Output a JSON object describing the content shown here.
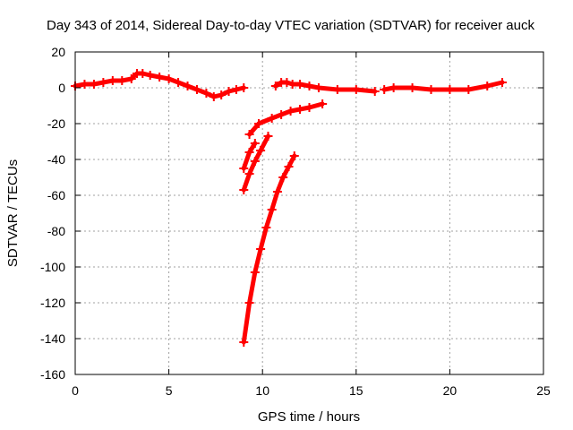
{
  "chart_data": {
    "type": "line",
    "title": "Day 343 of 2014, Sidereal Day-to-day VTEC variation (SDTVAR) for receiver auck",
    "xlabel": "GPS time / hours",
    "ylabel": "SDTVAR / TECUs",
    "xlim": [
      0,
      25
    ],
    "ylim": [
      -160,
      20
    ],
    "x_ticks": [
      0,
      5,
      10,
      15,
      20,
      25
    ],
    "y_ticks": [
      20,
      0,
      -20,
      -40,
      -60,
      -80,
      -100,
      -120,
      -140,
      -160
    ],
    "grid": true,
    "legend": "none",
    "color": "#ff0000",
    "series": [
      {
        "x": [
          0.0,
          0.5,
          1.0,
          1.5,
          2.0,
          2.5,
          3.0,
          3.3,
          3.6,
          4.0,
          4.5,
          5.0,
          5.5,
          6.0,
          6.5,
          7.0,
          7.4,
          7.8,
          8.2,
          8.6,
          9.0
        ],
        "y": [
          1,
          2,
          2,
          3,
          4,
          4,
          5,
          8,
          8,
          7,
          6,
          5,
          3,
          1,
          -1,
          -3,
          -5,
          -4,
          -2,
          -1,
          0
        ]
      },
      {
        "x": [
          10.7,
          11.0,
          11.3,
          11.6,
          12.0,
          12.5,
          13.0,
          14.0,
          15.0,
          16.0
        ],
        "y": [
          1,
          3,
          3,
          2,
          2,
          1,
          0,
          -1,
          -1,
          -2
        ]
      },
      {
        "x": [
          16.5,
          17.0,
          18.0,
          19.0,
          20.0,
          21.0,
          22.0,
          22.8
        ],
        "y": [
          -1,
          0,
          0,
          -1,
          -1,
          -1,
          1,
          3
        ]
      },
      {
        "x": [
          9.3,
          9.8,
          10.5,
          11.0,
          11.5,
          12.0,
          12.5,
          13.2
        ],
        "y": [
          -26,
          -20,
          -17,
          -15,
          -13,
          -12,
          -11,
          -9
        ]
      },
      {
        "x": [
          9.0,
          9.3,
          9.6
        ],
        "y": [
          -45,
          -36,
          -31
        ]
      },
      {
        "x": [
          9.0,
          9.3,
          9.6,
          9.9,
          10.3
        ],
        "y": [
          -57,
          -48,
          -41,
          -35,
          -27
        ]
      },
      {
        "x": [
          9.0,
          9.3,
          9.6,
          9.9,
          10.2,
          10.5,
          10.8,
          11.1,
          11.4,
          11.7
        ],
        "y": [
          -142,
          -120,
          -103,
          -90,
          -78,
          -68,
          -58,
          -50,
          -44,
          -38
        ]
      }
    ]
  }
}
